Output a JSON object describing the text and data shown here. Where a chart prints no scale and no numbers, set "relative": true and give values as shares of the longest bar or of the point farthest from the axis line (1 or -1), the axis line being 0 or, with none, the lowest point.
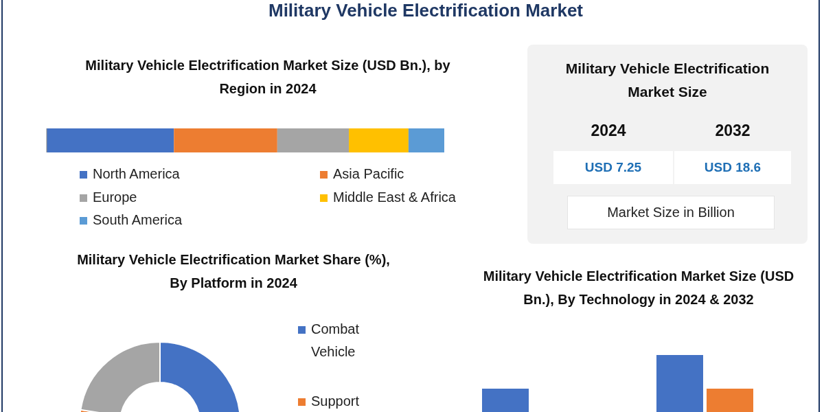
{
  "chart_data": [
    {
      "type": "other",
      "title": "Military Vehicle Electrification Market"
    },
    {
      "type": "bar",
      "title": "Military Vehicle Electrification Market Size (USD Bn.), by Region in 2024",
      "orientation": "horizontal",
      "stacked": true,
      "relative": true,
      "categories": [
        null
      ],
      "legend": "bottom",
      "series": [
        {
          "name": "North America",
          "color": "#4472c4",
          "values": [
            0.32
          ]
        },
        {
          "name": "Asia Pacific",
          "color": "#ed7d31",
          "values": [
            0.26
          ]
        },
        {
          "name": "Europe",
          "color": "#a5a5a5",
          "values": [
            0.18
          ]
        },
        {
          "name": "Middle East & Africa",
          "color": "#ffc000",
          "values": [
            0.15
          ]
        },
        {
          "name": "South America",
          "color": "#5b9bd5",
          "values": [
            0.09
          ]
        }
      ]
    },
    {
      "type": "other",
      "title": "Military Vehicle Electrification Market Size",
      "annotations": [
        "2024",
        "2032",
        "USD 7.25",
        "USD 18.6",
        "Market Size in Billion"
      ]
    },
    {
      "type": "donut",
      "title": "Military Vehicle Electrification Market Share (%), By Platform in 2024",
      "categories": [
        "Combat Vehicle",
        "Support",
        null
      ],
      "values": [
        62.5,
        15,
        22.5
      ],
      "colors": [
        "#4472c4",
        "#ed7d31",
        "#a5a5a5"
      ],
      "legend": "right"
    },
    {
      "type": "other",
      "title": "Military Vehicle Electrification Market Size (USD Bn.), By Technology in 2024 & 2032"
    }
  ]
}
